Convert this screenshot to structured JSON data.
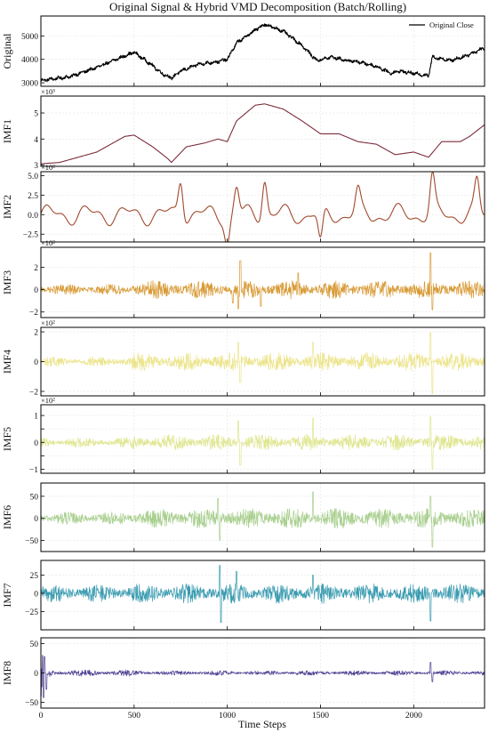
{
  "figure": {
    "title": "Original Signal & Hybrid VMD Decomposition (Batch/Rolling)",
    "xlabel": "Time Steps"
  },
  "chart_data": {
    "type": "line",
    "x_range": [
      0,
      2380
    ],
    "x_ticks": [
      0,
      500,
      1000,
      1500,
      2000
    ],
    "grid": true,
    "panels": [
      {
        "ylabel": "Original",
        "color": "#000000",
        "legend": "Original Close",
        "legend_loc": "upper right",
        "ylim": [
          2850,
          5850
        ],
        "yticks": [
          3000,
          4000,
          5000
        ],
        "ytick_labels": [
          "3000",
          "4000",
          "5000"
        ],
        "multiplier": "",
        "kind": "trend",
        "anchors": [
          [
            0,
            3100
          ],
          [
            150,
            3250
          ],
          [
            300,
            3650
          ],
          [
            450,
            4150
          ],
          [
            500,
            4300
          ],
          [
            580,
            3850
          ],
          [
            650,
            3400
          ],
          [
            700,
            3200
          ],
          [
            750,
            3500
          ],
          [
            850,
            3800
          ],
          [
            950,
            3900
          ],
          [
            1000,
            4000
          ],
          [
            1050,
            4700
          ],
          [
            1150,
            5250
          ],
          [
            1200,
            5500
          ],
          [
            1300,
            5200
          ],
          [
            1400,
            4600
          ],
          [
            1480,
            3950
          ],
          [
            1560,
            4100
          ],
          [
            1640,
            3950
          ],
          [
            1700,
            3900
          ],
          [
            1800,
            3700
          ],
          [
            1880,
            3400
          ],
          [
            1920,
            3500
          ],
          [
            2000,
            3400
          ],
          [
            2080,
            3300
          ],
          [
            2100,
            4100
          ],
          [
            2200,
            3950
          ],
          [
            2280,
            4150
          ],
          [
            2380,
            4500
          ]
        ],
        "noise": 120
      },
      {
        "ylabel": "IMF1",
        "color": "#7b2c3a",
        "ylim": [
          2950,
          5650
        ],
        "yticks": [
          3000,
          4000,
          5000
        ],
        "ytick_labels": [
          "3",
          "4",
          "5"
        ],
        "multiplier": "×10³",
        "kind": "trend",
        "anchors": [
          [
            0,
            3050
          ],
          [
            100,
            3100
          ],
          [
            300,
            3500
          ],
          [
            450,
            4100
          ],
          [
            500,
            4150
          ],
          [
            600,
            3700
          ],
          [
            680,
            3250
          ],
          [
            700,
            3100
          ],
          [
            780,
            3700
          ],
          [
            880,
            3850
          ],
          [
            950,
            4000
          ],
          [
            1000,
            3900
          ],
          [
            1050,
            4700
          ],
          [
            1150,
            5300
          ],
          [
            1200,
            5350
          ],
          [
            1300,
            5150
          ],
          [
            1400,
            4700
          ],
          [
            1500,
            4200
          ],
          [
            1600,
            4200
          ],
          [
            1700,
            3900
          ],
          [
            1800,
            3800
          ],
          [
            1900,
            3400
          ],
          [
            2000,
            3500
          ],
          [
            2080,
            3300
          ],
          [
            2150,
            3900
          ],
          [
            2250,
            3900
          ],
          [
            2300,
            4100
          ],
          [
            2380,
            4550
          ]
        ],
        "noise": 0
      },
      {
        "ylabel": "IMF2",
        "color": "#a04a2e",
        "ylim": [
          -350,
          550
        ],
        "yticks": [
          -250,
          0,
          250,
          500
        ],
        "ytick_labels": [
          "−2.5",
          "0.0",
          "2.5",
          "5.0"
        ],
        "multiplier": "×10²",
        "kind": "osc",
        "amp": 120,
        "spikes": [
          [
            750,
            470
          ],
          [
            1000,
            -330
          ],
          [
            1050,
            350
          ],
          [
            1200,
            480
          ],
          [
            1500,
            -400
          ],
          [
            1700,
            260
          ],
          [
            2100,
            450
          ],
          [
            2340,
            400
          ]
        ]
      },
      {
        "ylabel": "IMF3",
        "color": "#d89a35",
        "ylim": [
          -250,
          380
        ],
        "yticks": [
          -200,
          0,
          200
        ],
        "ytick_labels": [
          "−2",
          "0",
          "2"
        ],
        "multiplier": "×10²",
        "kind": "noise",
        "amp": 35,
        "amp_after": 60,
        "switch": 490,
        "spikes": [
          [
            1030,
            -120
          ],
          [
            1060,
            -170
          ],
          [
            1070,
            260
          ],
          [
            1180,
            -150
          ],
          [
            1380,
            150
          ],
          [
            2090,
            330
          ],
          [
            2100,
            -180
          ]
        ]
      },
      {
        "ylabel": "IMF4",
        "color": "#ece48a",
        "ylim": [
          -230,
          230
        ],
        "yticks": [
          -200,
          0,
          200
        ],
        "ytick_labels": [
          "−2",
          "0",
          "2"
        ],
        "multiplier": "×10²",
        "kind": "noise",
        "amp": 25,
        "amp_after": 45,
        "switch": 490,
        "spikes": [
          [
            1060,
            130
          ],
          [
            1070,
            -140
          ],
          [
            1460,
            130
          ],
          [
            2090,
            195
          ],
          [
            2100,
            -215
          ]
        ]
      },
      {
        "ylabel": "IMF5",
        "color": "#dfe690",
        "ylim": [
          -115,
          140
        ],
        "yticks": [
          -100,
          -50,
          0,
          50,
          100
        ],
        "ytick_labels": [
          "−1",
          "",
          "0",
          "",
          "1"
        ],
        "multiplier": "×10²",
        "kind": "noise",
        "amp": 14,
        "amp_after": 22,
        "switch": 490,
        "spikes": [
          [
            1060,
            80
          ],
          [
            1070,
            -85
          ],
          [
            1460,
            90
          ],
          [
            2090,
            95
          ],
          [
            2100,
            -100
          ]
        ]
      },
      {
        "ylabel": "IMF6",
        "color": "#a8cf8e",
        "ylim": [
          -75,
          80
        ],
        "yticks": [
          -50,
          0,
          50
        ],
        "ytick_labels": [
          "−50",
          "0",
          "50"
        ],
        "multiplier": "",
        "kind": "noise",
        "amp": 11,
        "amp_after": 17,
        "switch": 490,
        "spikes": [
          [
            950,
            45
          ],
          [
            960,
            -50
          ],
          [
            1460,
            60
          ],
          [
            2090,
            50
          ],
          [
            2100,
            -65
          ]
        ]
      },
      {
        "ylabel": "IMF7",
        "color": "#3a9bb0",
        "ylim": [
          -50,
          45
        ],
        "yticks": [
          -25,
          0,
          25
        ],
        "ytick_labels": [
          "−25",
          "0",
          "25"
        ],
        "multiplier": "",
        "kind": "noise",
        "amp": 9,
        "amp_after": 10,
        "switch": 490,
        "spikes": [
          [
            960,
            38
          ],
          [
            965,
            -40
          ],
          [
            1050,
            30
          ],
          [
            1460,
            25
          ],
          [
            2090,
            -38
          ]
        ]
      },
      {
        "ylabel": "IMF8",
        "color": "#4b3f92",
        "ylim": [
          -60,
          60
        ],
        "yticks": [
          -50,
          0,
          50
        ],
        "ytick_labels": [
          "−50",
          "0",
          "50"
        ],
        "multiplier": "",
        "kind": "noise",
        "amp": 4,
        "amp_after": 3,
        "switch": 490,
        "burst": true,
        "spikes": [
          [
            10,
            30
          ],
          [
            14,
            -42
          ],
          [
            20,
            28
          ],
          [
            30,
            -28
          ],
          [
            2090,
            18
          ],
          [
            2100,
            -15
          ]
        ]
      }
    ]
  }
}
